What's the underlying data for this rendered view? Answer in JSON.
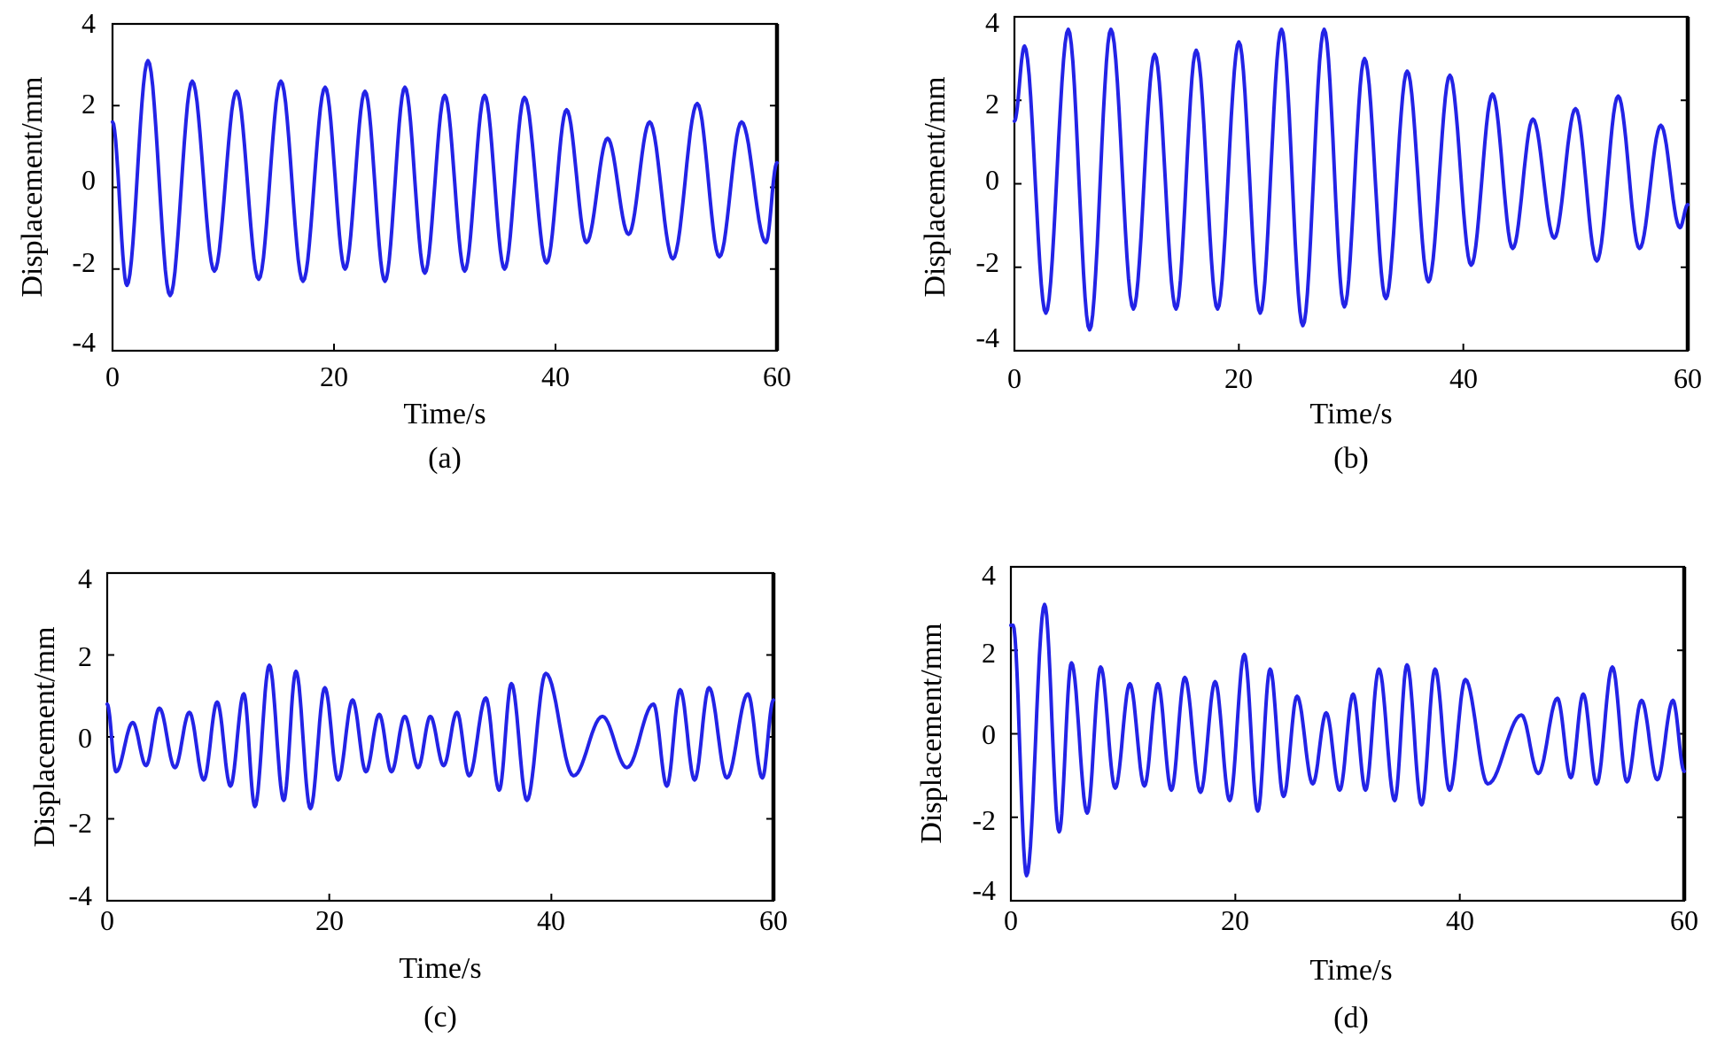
{
  "figure": {
    "line_color": "#2323e6"
  },
  "chart_data": [
    {
      "type": "line",
      "panel_label": "(a)",
      "xlabel": "Time/s",
      "ylabel": "Displacement/mm",
      "xlim": [
        0,
        60
      ],
      "ylim": [
        -4,
        4
      ],
      "x_ticks": [
        0,
        20,
        40,
        60
      ],
      "x_tick_labels": [
        "0",
        "20",
        "40",
        "60"
      ],
      "y_ticks": [
        4,
        2,
        0,
        -2,
        -4
      ],
      "y_tick_labels": [
        "4",
        "2",
        "0",
        "-2",
        "-4"
      ],
      "series": [
        {
          "name": "displacement",
          "start": {
            "t": 0,
            "v": 1.6
          },
          "end": {
            "t": 60,
            "v": 0.6
          },
          "peaks_t": [
            3.2,
            7.2,
            11.2,
            15.2,
            19.2,
            22.8,
            26.4,
            30.0,
            33.6,
            37.2,
            41.0,
            44.7,
            48.5,
            52.8,
            56.8
          ],
          "peaks_v": [
            3.1,
            2.6,
            2.35,
            2.6,
            2.45,
            2.35,
            2.45,
            2.25,
            2.25,
            2.2,
            1.9,
            1.2,
            1.6,
            2.05,
            1.6
          ],
          "troughs_t": [
            1.3,
            5.2,
            9.2,
            13.2,
            17.2,
            21.0,
            24.6,
            28.2,
            31.8,
            35.4,
            39.2,
            42.8,
            46.6,
            50.6,
            54.8,
            59.0
          ],
          "troughs_v": [
            -2.4,
            -2.65,
            -2.05,
            -2.25,
            -2.3,
            -2.0,
            -2.3,
            -2.1,
            -2.05,
            -2.0,
            -1.85,
            -1.35,
            -1.15,
            -1.75,
            -1.7,
            -1.35
          ]
        }
      ]
    },
    {
      "type": "line",
      "panel_label": "(b)",
      "xlabel": "Time/s",
      "ylabel": "Displacement/mm",
      "xlim": [
        0,
        60
      ],
      "ylim": [
        -4,
        4
      ],
      "x_ticks": [
        0,
        20,
        40,
        60
      ],
      "x_tick_labels": [
        "0",
        "20",
        "40",
        "60"
      ],
      "y_ticks": [
        4,
        2,
        0,
        -2,
        -4
      ],
      "y_tick_labels": [
        "4",
        "2",
        "0",
        "-2",
        "-4"
      ],
      "series": [
        {
          "name": "displacement",
          "start": {
            "t": 0,
            "v": 1.5
          },
          "end": {
            "t": 60,
            "v": -0.5
          },
          "peaks_t": [
            0.9,
            4.8,
            8.6,
            12.5,
            16.2,
            20.0,
            23.8,
            27.6,
            31.2,
            35.0,
            38.8,
            42.6,
            46.2,
            50.0,
            53.8,
            57.6
          ],
          "peaks_v": [
            3.3,
            3.7,
            3.7,
            3.1,
            3.2,
            3.4,
            3.7,
            3.7,
            3.0,
            2.7,
            2.6,
            2.15,
            1.55,
            1.8,
            2.1,
            1.4
          ],
          "troughs_t": [
            2.8,
            6.7,
            10.6,
            14.4,
            18.1,
            21.9,
            25.7,
            29.4,
            33.1,
            36.9,
            40.7,
            44.4,
            48.1,
            51.9,
            55.7,
            59.3
          ],
          "troughs_v": [
            -3.1,
            -3.5,
            -3.0,
            -3.0,
            -3.0,
            -3.1,
            -3.4,
            -2.95,
            -2.75,
            -2.35,
            -1.95,
            -1.55,
            -1.3,
            -1.85,
            -1.55,
            -1.05
          ]
        }
      ]
    },
    {
      "type": "line",
      "panel_label": "(c)",
      "xlabel": "Time/s",
      "ylabel": "Displacement/mm",
      "xlim": [
        0,
        60
      ],
      "ylim": [
        -4,
        4
      ],
      "x_ticks": [
        0,
        20,
        40,
        60
      ],
      "x_tick_labels": [
        "0",
        "20",
        "40",
        "60"
      ],
      "y_ticks": [
        4,
        2,
        0,
        -2,
        -4
      ],
      "y_tick_labels": [
        "4",
        "2",
        "0",
        "-2",
        "-4"
      ],
      "series": [
        {
          "name": "displacement",
          "start": {
            "t": 0,
            "v": 0.8
          },
          "end": {
            "t": 60,
            "v": 0.9
          },
          "peaks_t": [
            2.3,
            4.7,
            7.4,
            9.9,
            12.3,
            14.6,
            17.0,
            19.6,
            22.1,
            24.5,
            26.8,
            29.1,
            31.5,
            34.1,
            36.4,
            39.5,
            44.6,
            49.2,
            51.6,
            54.2,
            57.7
          ],
          "peaks_v": [
            0.35,
            0.7,
            0.6,
            0.85,
            1.05,
            1.75,
            1.6,
            1.2,
            0.9,
            0.55,
            0.5,
            0.5,
            0.6,
            0.95,
            1.3,
            1.55,
            0.5,
            0.8,
            1.15,
            1.2,
            1.05
          ],
          "troughs_t": [
            0.8,
            3.5,
            6.1,
            8.7,
            11.1,
            13.3,
            15.9,
            18.3,
            20.8,
            23.3,
            25.6,
            28.0,
            30.3,
            32.6,
            35.3,
            37.8,
            42.0,
            46.8,
            50.4,
            52.9,
            55.8,
            59.0
          ],
          "troughs_v": [
            -0.85,
            -0.7,
            -0.75,
            -1.05,
            -1.2,
            -1.7,
            -1.55,
            -1.75,
            -1.05,
            -0.85,
            -0.85,
            -0.75,
            -0.7,
            -0.95,
            -1.3,
            -1.55,
            -0.95,
            -0.75,
            -1.2,
            -1.05,
            -1.0,
            -1.0
          ]
        }
      ]
    },
    {
      "type": "line",
      "panel_label": "(d)",
      "xlabel": "Time/s",
      "ylabel": "Displacement/mm",
      "xlim": [
        0,
        60
      ],
      "ylim": [
        -4,
        4
      ],
      "x_ticks": [
        0,
        20,
        40,
        60
      ],
      "x_tick_labels": [
        "0",
        "20",
        "40",
        "60"
      ],
      "y_ticks": [
        4,
        2,
        0,
        -2,
        -4
      ],
      "y_tick_labels": [
        "4",
        "2",
        "0",
        "-2",
        "-4"
      ],
      "series": [
        {
          "name": "displacement",
          "start": {
            "t": 0,
            "v": 2.6
          },
          "end": {
            "t": 60,
            "v": -0.9
          },
          "peaks_t": [
            0.2,
            3.0,
            5.4,
            8.0,
            10.6,
            13.1,
            15.5,
            18.2,
            20.8,
            23.1,
            25.5,
            28.1,
            30.5,
            32.8,
            35.3,
            37.8,
            40.5,
            45.5,
            48.7,
            51.0,
            53.6,
            56.2,
            59.0
          ],
          "peaks_v": [
            2.6,
            3.1,
            1.7,
            1.6,
            1.2,
            1.2,
            1.35,
            1.25,
            1.9,
            1.55,
            0.9,
            0.5,
            0.95,
            1.55,
            1.65,
            1.55,
            1.3,
            0.45,
            0.85,
            0.95,
            1.6,
            0.8,
            0.8
          ],
          "troughs_t": [
            1.4,
            4.3,
            6.8,
            9.3,
            11.9,
            14.3,
            16.9,
            19.5,
            22.0,
            24.3,
            26.9,
            29.3,
            31.6,
            34.2,
            36.6,
            39.1,
            42.5,
            47.0,
            49.9,
            52.2,
            54.9,
            57.6
          ],
          "troughs_v": [
            -3.4,
            -2.35,
            -1.9,
            -1.3,
            -1.25,
            -1.35,
            -1.4,
            -1.6,
            -1.85,
            -1.5,
            -1.2,
            -1.35,
            -1.35,
            -1.6,
            -1.7,
            -1.35,
            -1.2,
            -0.95,
            -1.05,
            -1.2,
            -1.15,
            -1.1
          ]
        }
      ]
    }
  ]
}
